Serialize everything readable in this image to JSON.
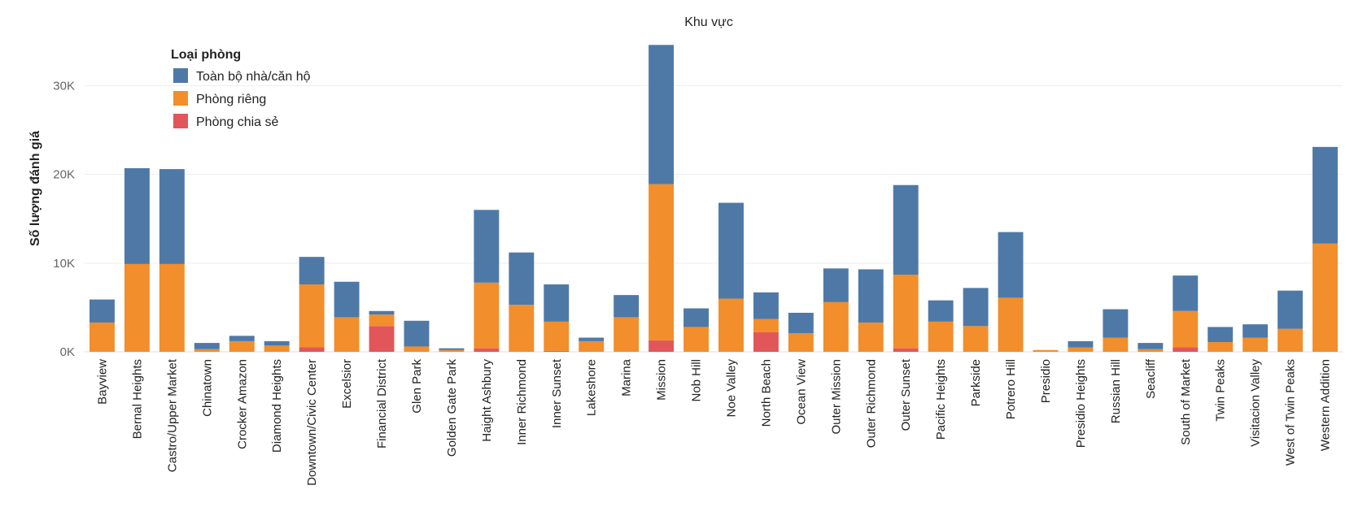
{
  "chart_data": {
    "type": "bar",
    "stacked": true,
    "title": "Khu vực",
    "ylabel": "Số lượng đánh giá",
    "xlabel": "",
    "ylim": [
      0,
      36000
    ],
    "yticks": [
      0,
      10000,
      20000,
      30000
    ],
    "ytick_labels": [
      "0K",
      "10K",
      "20K",
      "30K"
    ],
    "grid": "horizontal",
    "legend": {
      "title": "Loại phòng",
      "position": "top-left"
    },
    "categories": [
      "Bayview",
      "Bernal Heights",
      "Castro/Upper Market",
      "Chinatown",
      "Crocker Amazon",
      "Diamond Heights",
      "Downtown/Civic Center",
      "Excelsior",
      "Financial District",
      "Glen Park",
      "Golden Gate Park",
      "Haight Ashbury",
      "Inner Richmond",
      "Inner Sunset",
      "Lakeshore",
      "Marina",
      "Mission",
      "Nob Hill",
      "Noe Valley",
      "North Beach",
      "Ocean View",
      "Outer Mission",
      "Outer Richmond",
      "Outer Sunset",
      "Pacific Heights",
      "Parkside",
      "Potrero Hill",
      "Presidio",
      "Presidio Heights",
      "Russian Hill",
      "Seacliff",
      "South of Market",
      "Twin Peaks",
      "Visitacion Valley",
      "West of Twin Peaks",
      "Western Addition"
    ],
    "series": [
      {
        "name": "Phòng chia sẻ",
        "color": "#e15759",
        "values": [
          0,
          0,
          0,
          0,
          0,
          0,
          500,
          0,
          2900,
          0,
          0,
          400,
          0,
          100,
          0,
          0,
          1300,
          0,
          0,
          2200,
          0,
          0,
          0,
          400,
          0,
          0,
          0,
          0,
          0,
          0,
          0,
          500,
          0,
          0,
          0,
          0
        ]
      },
      {
        "name": "Phòng riêng",
        "color": "#f28e2b",
        "values": [
          3300,
          9900,
          9900,
          300,
          1200,
          700,
          7100,
          3900,
          1300,
          600,
          200,
          7400,
          5300,
          3300,
          1200,
          3900,
          17600,
          2800,
          6000,
          1500,
          2100,
          5600,
          3300,
          8300,
          3400,
          2900,
          6100,
          200,
          500,
          1600,
          300,
          4100,
          1100,
          1600,
          2600,
          12200
        ]
      },
      {
        "name": "Toàn bộ nhà/căn hộ",
        "color": "#4e79a7",
        "values": [
          2600,
          10800,
          10700,
          700,
          600,
          500,
          3100,
          4000,
          400,
          2900,
          200,
          8200,
          5900,
          4200,
          400,
          2500,
          15700,
          2100,
          10800,
          3000,
          2300,
          3800,
          6000,
          10100,
          2400,
          4300,
          7400,
          0,
          700,
          3200,
          700,
          4000,
          1700,
          1500,
          4300,
          10900
        ]
      }
    ]
  }
}
